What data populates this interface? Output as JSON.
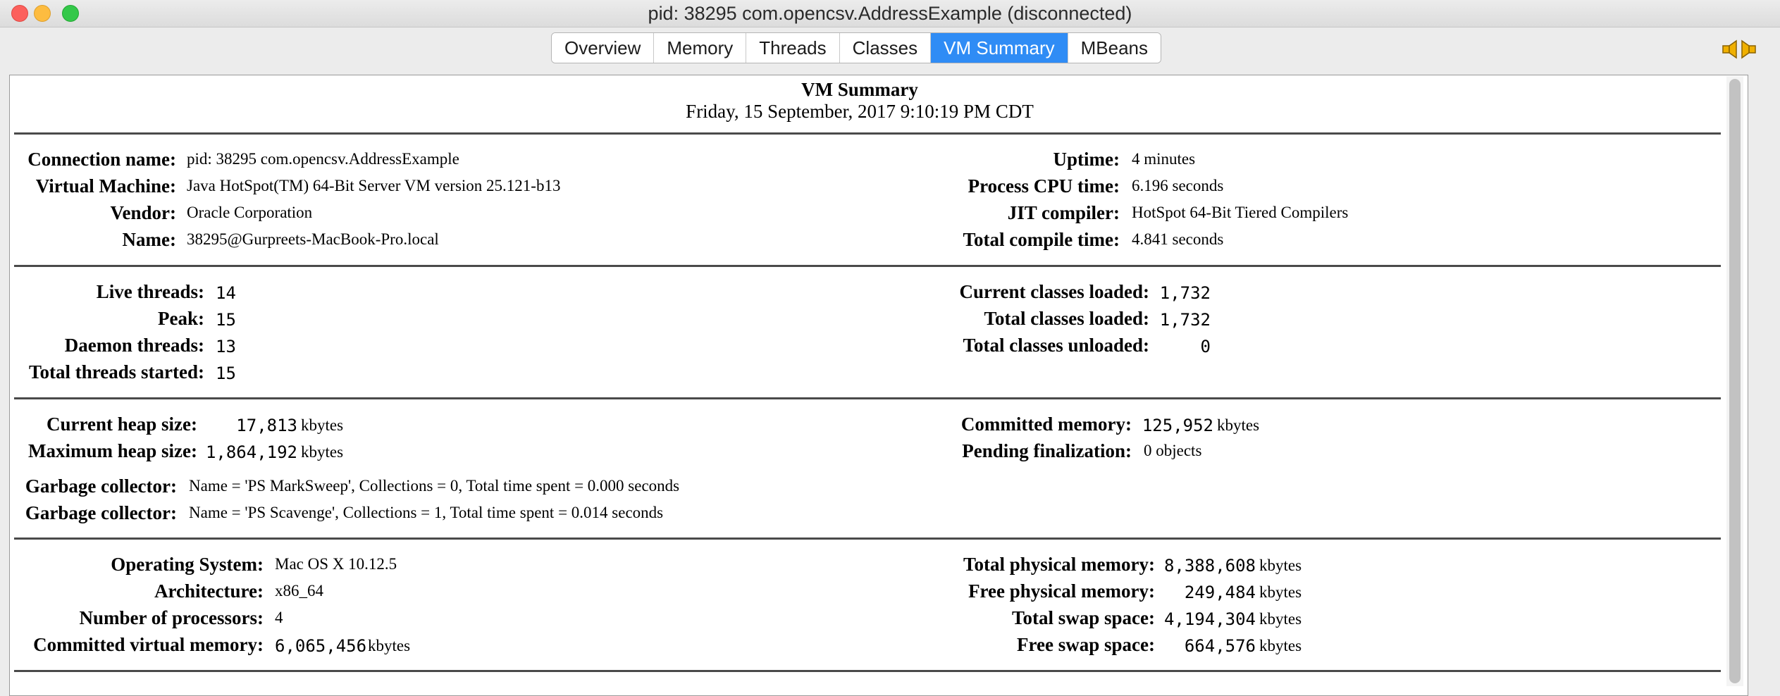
{
  "window": {
    "title": "pid: 38295 com.opencsv.AddressExample (disconnected)"
  },
  "tabs": [
    "Overview",
    "Memory",
    "Threads",
    "Classes",
    "VM Summary",
    "MBeans"
  ],
  "active_tab": "VM Summary",
  "summary": {
    "title": "VM Summary",
    "date": "Friday, 15 September, 2017 9:10:19 PM CDT"
  },
  "vm_info": {
    "connection_name_label": "Connection name:",
    "connection_name": "pid: 38295 com.opencsv.AddressExample",
    "virtual_machine_label": "Virtual Machine:",
    "virtual_machine": "Java HotSpot(TM) 64-Bit Server VM version 25.121-b13",
    "vendor_label": "Vendor:",
    "vendor": "Oracle Corporation",
    "name_label": "Name:",
    "name": "38295@Gurpreets-MacBook-Pro.local",
    "uptime_label": "Uptime:",
    "uptime": "4 minutes",
    "process_cpu_time_label": "Process CPU time:",
    "process_cpu_time": "6.196 seconds",
    "jit_compiler_label": "JIT compiler:",
    "jit_compiler": "HotSpot 64-Bit Tiered Compilers",
    "total_compile_time_label": "Total compile time:",
    "total_compile_time": "4.841 seconds"
  },
  "threads": {
    "live_threads_label": "Live threads:",
    "live_threads": "14",
    "peak_label": "Peak:",
    "peak": "15",
    "daemon_threads_label": "Daemon threads:",
    "daemon_threads": "13",
    "total_threads_started_label": "Total threads started:",
    "total_threads_started": "15"
  },
  "classes": {
    "current_loaded_label": "Current classes loaded:",
    "current_loaded": "1,732",
    "total_loaded_label": "Total classes loaded:",
    "total_loaded": "1,732",
    "total_unloaded_label": "Total classes unloaded:",
    "total_unloaded": "0"
  },
  "memory": {
    "current_heap_label": "Current heap size:",
    "current_heap": "17,813",
    "max_heap_label": "Maximum heap size:",
    "max_heap": "1,864,192",
    "committed_label": "Committed memory:",
    "committed": "125,952",
    "pending_finalization_label": "Pending finalization:",
    "pending_finalization": "0 objects",
    "unit": "kbytes",
    "gc_label": "Garbage collector:",
    "gc1": "Name = 'PS MarkSweep', Collections = 0, Total time spent = 0.000 seconds",
    "gc2": "Name = 'PS Scavenge', Collections = 1, Total time spent = 0.014 seconds"
  },
  "os": {
    "os_label": "Operating System:",
    "os": "Mac OS X 10.12.5",
    "arch_label": "Architecture:",
    "arch": "x86_64",
    "processors_label": "Number of processors:",
    "processors": "4",
    "committed_virtual_label": "Committed virtual memory:",
    "committed_virtual": "6,065,456",
    "total_physical_label": "Total physical memory:",
    "total_physical": "8,388,608",
    "free_physical_label": "Free physical memory:",
    "free_physical": "249,484",
    "total_swap_label": "Total swap space:",
    "total_swap": "4,194,304",
    "free_swap_label": "Free swap space:",
    "free_swap": "664,576"
  }
}
